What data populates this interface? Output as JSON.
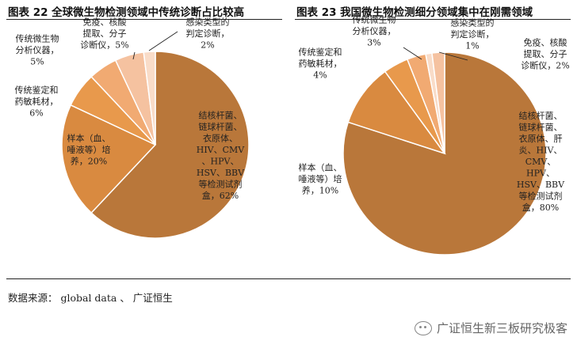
{
  "source_text": "数据来源： global data 、 广证恒生",
  "watermark": "广证恒生新三板研究极客",
  "chart_data": [
    {
      "type": "pie",
      "title": "图表 22 全球微生物检测领域中传统诊断占比较高",
      "slices": [
        {
          "label": "结核杆菌、链球杆菌、衣原体、HIV、CMV、HPV、HSV、BBV等检测试剂盒",
          "value": 62,
          "display": [
            "结核杆菌、",
            "链球杆菌、",
            "衣原体、",
            "HIV、CMV",
            "、HPV、",
            "HSV、BBV",
            "等检测试剂",
            "盒，62%"
          ],
          "color": "#b9773a"
        },
        {
          "label": "样本（血、唾液等）培养",
          "value": 20,
          "display": [
            "样本（血、",
            "唾液等）培",
            "养，20%"
          ],
          "color": "#d98a40"
        },
        {
          "label": "传统鉴定和药敏耗材",
          "value": 6,
          "display": [
            "传统鉴定和",
            "药敏耗材，",
            "6%"
          ],
          "color": "#e8994c"
        },
        {
          "label": "传统微生物分析仪器",
          "value": 5,
          "display": [
            "传统微生物",
            "分析仪器，",
            "5%"
          ],
          "color": "#f1aa72"
        },
        {
          "label": "免疫、核酸提取、分子诊断仪",
          "value": 5,
          "display": [
            "免疫、核酸",
            "提取、分子",
            "诊断仪，5%"
          ],
          "color": "#f5c2a0"
        },
        {
          "label": "感染类型的判定诊断",
          "value": 2,
          "display": [
            "感染类型的",
            "判定诊断，",
            "2%"
          ],
          "color": "#f9dcc8"
        }
      ]
    },
    {
      "type": "pie",
      "title": "图表 23 我国微生物检测细分领域集中在刚需领域",
      "slices": [
        {
          "label": "结核杆菌、链球杆菌、衣原体、肝炎、HIV、CMV、HPV、HSV、BBV等检测试剂盒",
          "value": 80,
          "display": [
            "结核杆菌、",
            "链球杆菌、",
            "衣原体、肝",
            "炎、HIV、",
            "CMV、",
            "HPV、",
            "HSV、BBV",
            "等检测试剂",
            "盒，80%"
          ],
          "color": "#b9773a"
        },
        {
          "label": "样本（血、唾液等）培养",
          "value": 10,
          "display": [
            "样本（血、",
            "唾液等）培",
            "养，10%"
          ],
          "color": "#d98a40"
        },
        {
          "label": "传统鉴定和药敏耗材",
          "value": 4,
          "display": [
            "传统鉴定和",
            "药敏耗材，",
            "4%"
          ],
          "color": "#e8994c"
        },
        {
          "label": "传统微生物分析仪器",
          "value": 3,
          "display": [
            "传统微生物",
            "分析仪器，",
            "3%"
          ],
          "color": "#f1aa72"
        },
        {
          "label": "感染类型的判定诊断",
          "value": 1,
          "display": [
            "感染类型的",
            "判定诊断，",
            "1%"
          ],
          "color": "#f9dcc8"
        },
        {
          "label": "免疫、核酸提取、分子诊断仪",
          "value": 2,
          "display": [
            "免疫、核酸",
            "提取、分子",
            "诊断仪，2%"
          ],
          "color": "#f5c2a0"
        }
      ]
    }
  ]
}
